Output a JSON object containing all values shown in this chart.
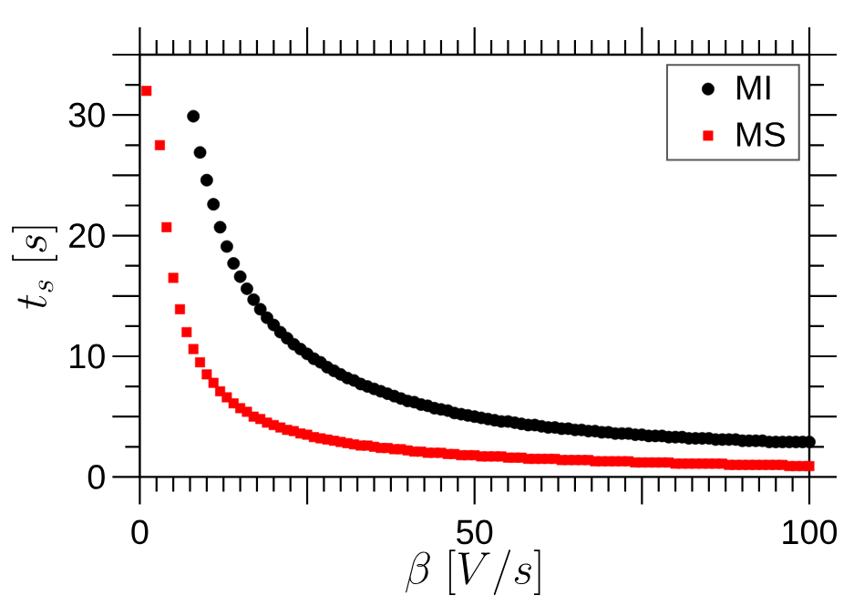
{
  "chart_data": {
    "type": "scatter",
    "xlabel": "\\beta\\ [V/s]",
    "ylabel": "t_s\\ [s]",
    "legend": "top right",
    "xlim": [
      0,
      100
    ],
    "ylim": [
      0,
      35
    ],
    "xticks": [
      0,
      {
        "value": 2.5,
        "label": null
      },
      {
        "value": 5,
        "label": null
      },
      {
        "value": 7.5,
        "label": null
      },
      {
        "value": 10,
        "label": null
      },
      {
        "value": 12.5,
        "label": null
      },
      {
        "value": 15,
        "label": null
      },
      {
        "value": 17.5,
        "label": null
      },
      {
        "value": 20,
        "label": null
      },
      {
        "value": 22.5,
        "label": null
      },
      {
        "value": 25,
        "label": null
      },
      {
        "value": 27.5,
        "label": null
      },
      {
        "value": 30,
        "label": null
      },
      {
        "value": 32.5,
        "label": null
      },
      {
        "value": 35,
        "label": null
      },
      {
        "value": 37.5,
        "label": null
      },
      {
        "value": 40,
        "label": null
      },
      {
        "value": 42.5,
        "label": null
      },
      {
        "value": 45,
        "label": null
      },
      {
        "value": 47.5,
        "label": null
      },
      50,
      {
        "value": 52.5,
        "label": null
      },
      {
        "value": 55,
        "label": null
      },
      {
        "value": 57.5,
        "label": null
      },
      {
        "value": 60,
        "label": null
      },
      {
        "value": 62.5,
        "label": null
      },
      {
        "value": 65,
        "label": null
      },
      {
        "value": 67.5,
        "label": null
      },
      {
        "value": 70,
        "label": null
      },
      {
        "value": 72.5,
        "label": null
      },
      {
        "value": 75,
        "label": null
      },
      {
        "value": 77.5,
        "label": null
      },
      {
        "value": 80,
        "label": null
      },
      {
        "value": 82.5,
        "label": null
      },
      {
        "value": 85,
        "label": null
      },
      {
        "value": 87.5,
        "label": null
      },
      {
        "value": 90,
        "label": null
      },
      {
        "value": 92.5,
        "label": null
      },
      {
        "value": 95,
        "label": null
      },
      {
        "value": 97.5,
        "label": null
      },
      100
    ],
    "yticks": [
      0,
      {
        "value": 2.5,
        "label": null
      },
      {
        "value": 5,
        "label": null
      },
      {
        "value": 7.5,
        "label": null
      },
      10,
      {
        "value": 12.5,
        "label": null
      },
      {
        "value": 15,
        "label": null
      },
      {
        "value": 17.5,
        "label": null
      },
      20,
      {
        "value": 22.5,
        "label": null
      },
      {
        "value": 25,
        "label": null
      },
      {
        "value": 27.5,
        "label": null
      },
      30,
      {
        "value": 32.5,
        "label": null
      },
      {
        "value": 35,
        "label": null
      }
    ],
    "series": [
      {
        "name": "MI",
        "color": "#000000",
        "marker": "circle",
        "x": [
          8,
          9,
          10,
          11,
          12,
          13,
          14,
          15,
          16,
          17,
          18,
          19,
          20,
          21,
          22,
          23,
          24,
          25,
          26,
          27,
          28,
          29,
          30,
          31,
          32,
          33,
          34,
          35,
          36,
          37,
          38,
          39,
          40,
          41,
          42,
          43,
          44,
          45,
          46,
          47,
          48,
          49,
          50,
          51,
          52,
          53,
          54,
          55,
          56,
          57,
          58,
          59,
          60,
          61,
          62,
          63,
          64,
          65,
          66,
          67,
          68,
          69,
          70,
          71,
          72,
          73,
          74,
          75,
          76,
          77,
          78,
          79,
          80,
          81,
          82,
          83,
          84,
          85,
          86,
          87,
          88,
          89,
          90,
          91,
          92,
          93,
          94,
          95,
          96,
          97,
          98,
          99,
          100
        ],
        "values": [
          29.9,
          26.9,
          24.6,
          22.6,
          20.7,
          19.1,
          17.7,
          16.6,
          15.6,
          14.7,
          13.9,
          13.2,
          12.6,
          12.0,
          11.5,
          11.0,
          10.6,
          10.2,
          9.8,
          9.5,
          9.1,
          8.8,
          8.5,
          8.2,
          8.0,
          7.7,
          7.5,
          7.3,
          7.1,
          6.9,
          6.7,
          6.5,
          6.3,
          6.2,
          6.0,
          5.9,
          5.7,
          5.6,
          5.5,
          5.3,
          5.2,
          5.1,
          5.0,
          4.9,
          4.8,
          4.7,
          4.6,
          4.6,
          4.5,
          4.4,
          4.3,
          4.3,
          4.2,
          4.1,
          4.1,
          4.0,
          4.0,
          3.9,
          3.9,
          3.8,
          3.8,
          3.7,
          3.7,
          3.6,
          3.6,
          3.6,
          3.5,
          3.5,
          3.4,
          3.4,
          3.4,
          3.3,
          3.3,
          3.3,
          3.2,
          3.2,
          3.2,
          3.2,
          3.1,
          3.1,
          3.1,
          3.1,
          3.0,
          3.0,
          3.0,
          3.0,
          2.9,
          2.9,
          2.9,
          2.9,
          2.9,
          2.9,
          2.9
        ]
      },
      {
        "name": "MS",
        "color": "#ff0000",
        "marker": "square",
        "x": [
          1,
          3,
          4,
          5,
          6,
          7,
          8,
          9,
          10,
          11,
          12,
          13,
          14,
          15,
          16,
          17,
          18,
          19,
          20,
          21,
          22,
          23,
          24,
          25,
          26,
          27,
          28,
          29,
          30,
          31,
          32,
          33,
          34,
          35,
          36,
          37,
          38,
          39,
          40,
          41,
          42,
          43,
          44,
          45,
          46,
          47,
          48,
          49,
          50,
          51,
          52,
          53,
          54,
          55,
          56,
          57,
          58,
          59,
          60,
          61,
          62,
          63,
          64,
          65,
          66,
          67,
          68,
          69,
          70,
          71,
          72,
          73,
          74,
          75,
          76,
          77,
          78,
          79,
          80,
          81,
          82,
          83,
          84,
          85,
          86,
          87,
          88,
          89,
          90,
          91,
          92,
          93,
          94,
          95,
          96,
          97,
          98,
          99,
          100
        ],
        "values": [
          32.0,
          27.5,
          20.7,
          16.5,
          13.9,
          12.0,
          10.6,
          9.5,
          8.5,
          7.8,
          7.1,
          6.6,
          6.1,
          5.7,
          5.4,
          5.0,
          4.8,
          4.5,
          4.3,
          4.1,
          3.9,
          3.8,
          3.6,
          3.5,
          3.3,
          3.2,
          3.1,
          3.0,
          2.9,
          2.8,
          2.7,
          2.6,
          2.6,
          2.5,
          2.4,
          2.4,
          2.3,
          2.3,
          2.2,
          2.1,
          2.1,
          2.0,
          2.0,
          2.0,
          1.9,
          1.9,
          1.8,
          1.8,
          1.8,
          1.7,
          1.7,
          1.7,
          1.7,
          1.6,
          1.6,
          1.6,
          1.5,
          1.5,
          1.5,
          1.5,
          1.5,
          1.4,
          1.4,
          1.4,
          1.4,
          1.4,
          1.3,
          1.3,
          1.3,
          1.3,
          1.3,
          1.3,
          1.2,
          1.2,
          1.2,
          1.2,
          1.2,
          1.2,
          1.1,
          1.1,
          1.1,
          1.1,
          1.1,
          1.1,
          1.1,
          1.1,
          1.0,
          1.0,
          1.0,
          1.0,
          1.0,
          1.0,
          1.0,
          1.0,
          1.0,
          0.9,
          0.9,
          0.9,
          0.9
        ]
      }
    ]
  }
}
